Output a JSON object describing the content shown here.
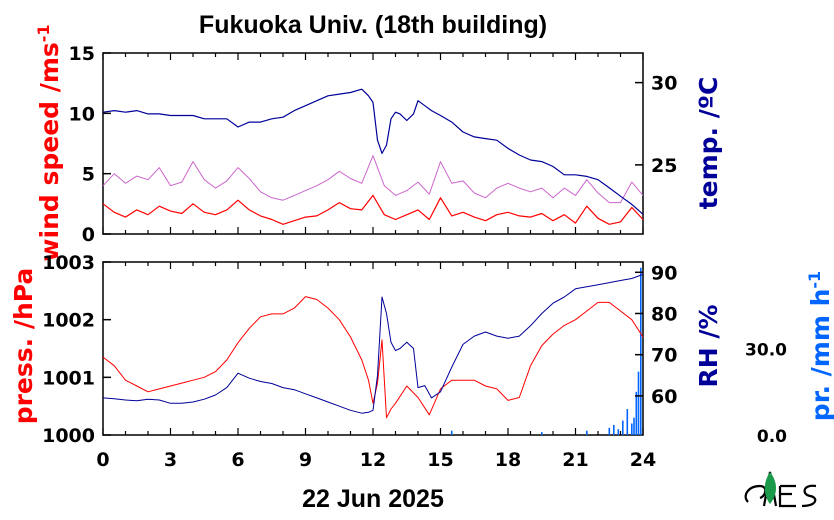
{
  "title": "Fukuoka Univ. (18th building)",
  "date_label": "22 Jun 2025",
  "colors": {
    "wind": "#ff0000",
    "wind_raw": "#cc66cc",
    "temp": "#000099",
    "pressure": "#ff0000",
    "rh": "#000099",
    "precip": "#0066ff"
  },
  "chart_data": [
    {
      "type": "line",
      "panel": "top",
      "x_unit": "hour of day",
      "xlim": [
        0,
        24
      ],
      "left_axis": {
        "label": "wind speed /ms",
        "label_sup": "-1",
        "ylim": [
          0,
          15
        ],
        "ticks": [
          "0",
          "5",
          "10",
          "15"
        ],
        "tick_values": [
          0,
          5,
          10,
          15
        ]
      },
      "right_axis": {
        "label": "temp. /ºC",
        "ylim": [
          20.8,
          31.8
        ],
        "ticks": [
          "25",
          "30"
        ],
        "tick_values": [
          25,
          30
        ]
      },
      "series": [
        {
          "axis": "left",
          "style": "smoothed",
          "color": "wind",
          "x": [
            0,
            0.5,
            1,
            1.5,
            2,
            2.5,
            3,
            3.5,
            4,
            4.5,
            5,
            5.5,
            6,
            6.5,
            7,
            7.5,
            8,
            8.5,
            9,
            9.5,
            10,
            10.5,
            11,
            11.5,
            12,
            12.5,
            13,
            13.5,
            14,
            14.5,
            15,
            15.5,
            16,
            16.5,
            17,
            17.5,
            18,
            18.5,
            19,
            19.5,
            20,
            20.5,
            21,
            21.5,
            22,
            22.5,
            23,
            23.5,
            24
          ],
          "y": [
            2.5,
            1.8,
            1.4,
            2.0,
            1.6,
            2.3,
            1.9,
            1.7,
            2.5,
            1.8,
            1.6,
            2.0,
            2.8,
            2.0,
            1.5,
            1.2,
            0.8,
            1.1,
            1.4,
            1.5,
            2.0,
            2.6,
            2.1,
            2.0,
            3.2,
            1.6,
            1.2,
            1.6,
            2.0,
            1.2,
            3.0,
            1.5,
            1.8,
            1.4,
            1.1,
            1.6,
            1.8,
            1.5,
            1.4,
            1.7,
            1.1,
            1.6,
            0.9,
            2.3,
            1.3,
            0.8,
            1.0,
            2.2,
            1.2
          ]
        },
        {
          "axis": "left",
          "style": "raw-1min",
          "color": "wind_raw",
          "x": [
            0,
            0.5,
            1,
            1.5,
            2,
            2.5,
            3,
            3.5,
            4,
            4.5,
            5,
            5.5,
            6,
            6.5,
            7,
            7.5,
            8,
            8.5,
            9,
            9.5,
            10,
            10.5,
            11,
            11.5,
            12,
            12.5,
            13,
            13.5,
            14,
            14.5,
            15,
            15.5,
            16,
            16.5,
            17,
            17.5,
            18,
            18.5,
            19,
            19.5,
            20,
            20.5,
            21,
            21.5,
            22,
            22.5,
            23,
            23.5,
            24
          ],
          "y": [
            4.0,
            5.0,
            4.2,
            4.8,
            4.5,
            5.5,
            4.0,
            4.3,
            6.0,
            4.5,
            3.8,
            4.4,
            5.5,
            4.6,
            3.5,
            3.0,
            2.8,
            3.2,
            3.6,
            4.0,
            4.5,
            5.2,
            4.6,
            4.2,
            6.5,
            4.0,
            3.2,
            3.6,
            4.3,
            3.3,
            6.0,
            4.2,
            4.4,
            3.4,
            3.0,
            3.8,
            4.2,
            3.8,
            3.5,
            3.8,
            3.0,
            3.8,
            3.2,
            4.5,
            3.4,
            2.6,
            2.6,
            4.3,
            3.2
          ]
        },
        {
          "axis": "right",
          "name": "temp.",
          "color": "temp",
          "x": [
            0,
            0.5,
            1,
            1.5,
            2,
            2.5,
            3,
            3.5,
            4,
            4.5,
            5,
            5.5,
            6,
            6.5,
            7,
            7.5,
            8,
            8.5,
            9,
            9.5,
            10,
            10.5,
            11,
            11.5,
            11.8,
            12,
            12.2,
            12.4,
            12.6,
            12.8,
            13.0,
            13.2,
            13.5,
            13.8,
            14.0,
            14.3,
            14.6,
            15.0,
            15.5,
            16,
            16.5,
            17,
            17.5,
            18,
            18.5,
            19,
            19.5,
            20,
            20.5,
            21,
            21.5,
            22,
            22.5,
            23,
            23.5,
            24
          ],
          "y": [
            28.2,
            28.3,
            28.2,
            28.3,
            28.1,
            28.1,
            28.0,
            28.0,
            28.0,
            27.8,
            27.8,
            27.8,
            27.3,
            27.6,
            27.6,
            27.8,
            27.9,
            28.3,
            28.6,
            28.9,
            29.2,
            29.3,
            29.4,
            29.6,
            29.2,
            28.8,
            26.5,
            25.7,
            26.2,
            27.8,
            28.2,
            28.1,
            27.7,
            28.1,
            28.9,
            28.6,
            28.3,
            28.0,
            27.6,
            27.0,
            26.7,
            26.6,
            26.5,
            26.0,
            25.6,
            25.3,
            25.2,
            24.9,
            24.4,
            24.4,
            24.3,
            24.1,
            23.6,
            23.1,
            22.6,
            22.0
          ]
        }
      ]
    },
    {
      "type": "line",
      "panel": "bottom",
      "x_unit": "hour of day",
      "xlim": [
        0,
        24
      ],
      "xticks": [
        "0",
        "3",
        "6",
        "9",
        "12",
        "15",
        "18",
        "21",
        "24"
      ],
      "xtick_values": [
        0,
        3,
        6,
        9,
        12,
        15,
        18,
        21,
        24
      ],
      "left_axis": {
        "label": "press. /hPa",
        "ylim": [
          1000,
          1003
        ],
        "ticks": [
          "1000",
          "1001",
          "1002",
          "1003"
        ],
        "tick_values": [
          1000,
          1001,
          1002,
          1003
        ]
      },
      "right_axis": {
        "label": "RH /%",
        "ylim": [
          50.5,
          92.5
        ],
        "ticks": [
          "60",
          "70",
          "80",
          "90"
        ],
        "tick_values": [
          60,
          70,
          80,
          90
        ]
      },
      "precip_axis": {
        "label": "pr. /mm h",
        "label_sup": "-1",
        "ylim": [
          0,
          60
        ],
        "ticks": [
          "0.0",
          "30.0"
        ],
        "tick_values": [
          0,
          30
        ]
      },
      "series": [
        {
          "axis": "left",
          "name": "press.",
          "color": "pressure",
          "x": [
            0,
            0.5,
            1,
            1.5,
            2,
            2.5,
            3,
            3.5,
            4,
            4.5,
            5,
            5.5,
            6,
            6.5,
            7,
            7.5,
            8,
            8.5,
            9,
            9.5,
            10,
            10.5,
            11,
            11.5,
            11.8,
            12,
            12.2,
            12.4,
            12.6,
            12.8,
            13,
            13.5,
            14,
            14.5,
            15,
            15.5,
            16,
            16.5,
            17,
            17.5,
            18,
            18.5,
            19,
            19.5,
            20,
            20.5,
            21,
            21.5,
            22,
            22.5,
            23,
            23.5,
            24
          ],
          "y": [
            1001.35,
            1001.2,
            1000.95,
            1000.85,
            1000.75,
            1000.8,
            1000.85,
            1000.9,
            1000.95,
            1001.0,
            1001.1,
            1001.3,
            1001.6,
            1001.85,
            1002.05,
            1002.1,
            1002.1,
            1002.2,
            1002.4,
            1002.35,
            1002.2,
            1002.0,
            1001.7,
            1001.3,
            1000.95,
            1000.55,
            1000.9,
            1001.65,
            1000.3,
            1000.45,
            1000.55,
            1000.85,
            1000.65,
            1000.35,
            1000.8,
            1000.95,
            1000.95,
            1000.95,
            1000.85,
            1000.8,
            1000.6,
            1000.65,
            1001.2,
            1001.55,
            1001.75,
            1001.9,
            1002.0,
            1002.15,
            1002.3,
            1002.3,
            1002.15,
            1002.0,
            1001.7
          ]
        },
        {
          "axis": "right",
          "name": "RH",
          "color": "rh",
          "x": [
            0,
            0.5,
            1,
            1.5,
            2,
            2.5,
            3,
            3.5,
            4,
            4.5,
            5,
            5.5,
            6,
            6.5,
            7,
            7.5,
            8,
            8.5,
            9,
            9.5,
            10,
            10.5,
            11,
            11.5,
            11.8,
            12,
            12.2,
            12.4,
            12.6,
            12.8,
            13,
            13.2,
            13.5,
            13.8,
            14,
            14.3,
            14.6,
            15,
            15.5,
            16,
            16.5,
            17,
            17.5,
            18,
            18.5,
            19,
            19.5,
            20,
            20.5,
            21,
            21.5,
            22,
            22.5,
            23,
            23.5,
            24
          ],
          "y": [
            59.5,
            59.3,
            59.0,
            58.8,
            59.2,
            59.0,
            58.2,
            58.2,
            58.5,
            59.2,
            60.2,
            62.0,
            65.5,
            64.3,
            63.5,
            63.0,
            62.0,
            61.5,
            60.5,
            59.5,
            58.5,
            57.5,
            56.5,
            55.8,
            56.0,
            56.5,
            65.0,
            84.0,
            80.0,
            73.0,
            71.0,
            71.5,
            73.0,
            71.5,
            62.0,
            62.5,
            59.5,
            61.0,
            67.0,
            72.5,
            74.5,
            75.5,
            74.5,
            74.0,
            74.5,
            77.0,
            80.0,
            82.5,
            84.0,
            86.0,
            86.5,
            87.0,
            87.5,
            88.0,
            88.5,
            89.5
          ]
        },
        {
          "axis": "precip",
          "name": "pr.",
          "type": "bar",
          "color": "precip",
          "x": [
            15.5,
            19.5,
            21.5,
            22.5,
            22.7,
            22.9,
            23.1,
            23.3,
            23.5,
            23.6,
            23.7,
            23.8,
            23.9
          ],
          "y": [
            1.5,
            1.0,
            1.5,
            2.5,
            3.5,
            2.0,
            5.0,
            9.0,
            4.0,
            6.0,
            15.0,
            22.0,
            58.0
          ]
        }
      ]
    }
  ]
}
